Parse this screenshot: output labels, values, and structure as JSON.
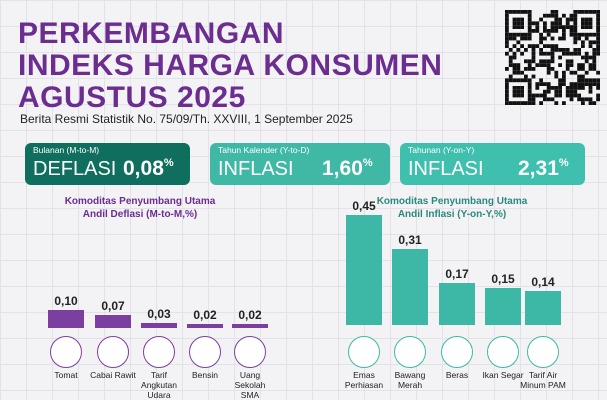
{
  "header": {
    "title_lines": [
      "PERKEMBANGAN",
      "INDEKS HARGA KONSUMEN",
      "AGUSTUS 2025"
    ],
    "subtitle": "Berita Resmi Statistik No. 75/09/Th. XXVIII, 1 September 2025"
  },
  "cards": [
    {
      "label": "Bulanan (M-to-M)",
      "kind": "DEFLASI",
      "value": "0,08",
      "unit": "%"
    },
    {
      "label": "Tahun Kalender (Y-to-D)",
      "kind": "INFLASI",
      "value": "1,60",
      "unit": "%"
    },
    {
      "label": "Tahunan (Y-on-Y)",
      "kind": "INFLASI",
      "value": "2,31",
      "unit": "%"
    }
  ],
  "chart_data": [
    {
      "type": "bar",
      "title_lines": [
        "Komoditas Penyumbang Utama",
        "Andil Deflasi (M-to-M,%)"
      ],
      "categories": [
        "Tomat",
        "Cabai Rawit",
        "Tarif Angkutan Udara",
        "Bensin",
        "Uang Sekolah SMA"
      ],
      "values": [
        0.1,
        0.07,
        0.03,
        0.02,
        0.02
      ],
      "value_labels": [
        "0,10",
        "0,07",
        "0,03",
        "0,02",
        "0,02"
      ],
      "color": "#7b3fa0"
    },
    {
      "type": "bar",
      "title_lines": [
        "Komoditas Penyumbang Utama",
        "Andil Inflasi (Y-on-Y,%)"
      ],
      "categories": [
        "Emas Perhiasan",
        "Bawang Merah",
        "Beras",
        "Ikan Segar",
        "Tarif Air Minum PAM"
      ],
      "values": [
        0.45,
        0.31,
        0.17,
        0.15,
        0.14
      ],
      "value_labels": [
        "0,45",
        "0,31",
        "0,17",
        "0,15",
        "0,14"
      ],
      "color": "#3db8a7"
    }
  ]
}
